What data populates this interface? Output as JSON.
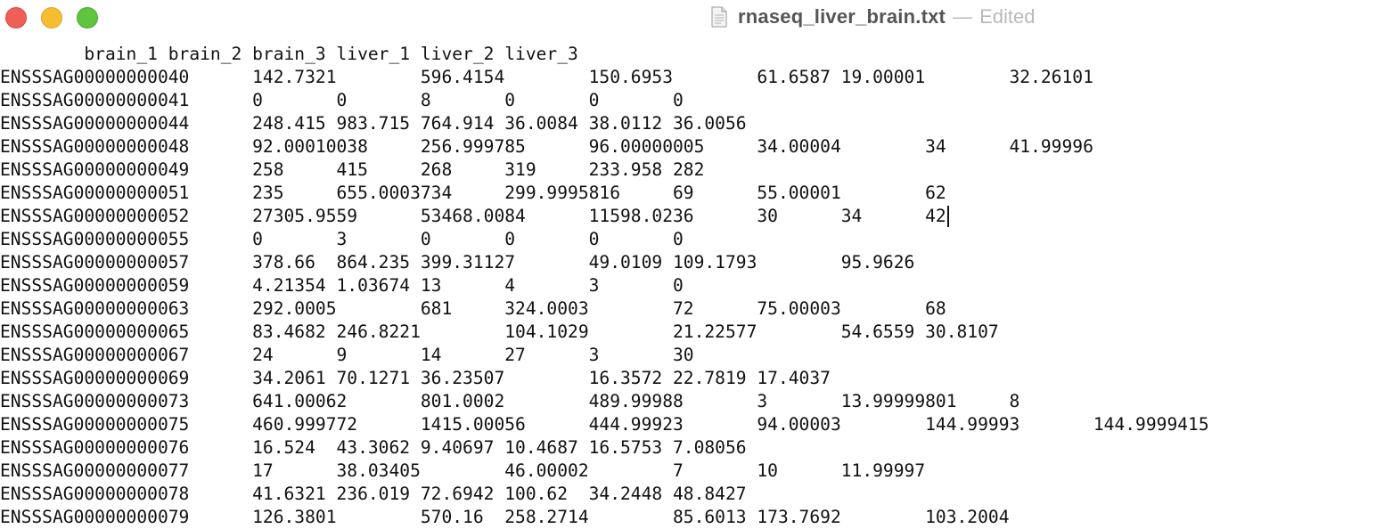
{
  "window": {
    "title": "rnaseq_liver_brain.txt",
    "separator": "—",
    "state": "Edited",
    "controls": [
      "close",
      "minimize",
      "zoom"
    ],
    "icon": "text-document-icon"
  },
  "document": {
    "header": [
      "brain_1",
      "brain_2",
      "brain_3",
      "liver_1",
      "liver_2",
      "liver_3"
    ],
    "rows": [
      [
        "ENSSSAG00000000040",
        "142.7321",
        "596.4154",
        "150.6953",
        "61.6587",
        "19.00001",
        "32.26101"
      ],
      [
        "ENSSSAG00000000041",
        "0",
        "0",
        "8",
        "0",
        "0",
        "0"
      ],
      [
        "ENSSSAG00000000044",
        "248.415",
        "983.715",
        "764.914",
        "36.0084",
        "38.0112",
        "36.0056"
      ],
      [
        "ENSSSAG00000000048",
        "92.00010038",
        "256.999785",
        "96.00000005",
        "34.00004",
        "34",
        "41.99996"
      ],
      [
        "ENSSSAG00000000049",
        "258",
        "415",
        "268",
        "319",
        "233.958",
        "282"
      ],
      [
        "ENSSSAG00000000051",
        "235",
        "655.0003734",
        "299.9995816",
        "69",
        "55.00001",
        "62"
      ],
      [
        "ENSSSAG00000000052",
        "27305.9559",
        "53468.0084",
        "11598.0236",
        "30",
        "34",
        "42"
      ],
      [
        "ENSSSAG00000000055",
        "0",
        "3",
        "0",
        "0",
        "0",
        "0"
      ],
      [
        "ENSSSAG00000000057",
        "378.66",
        "864.235",
        "399.31127",
        "49.0109",
        "109.1793",
        "95.9626"
      ],
      [
        "ENSSSAG00000000059",
        "4.21354",
        "1.03674",
        "13",
        "4",
        "3",
        "0"
      ],
      [
        "ENSSSAG00000000063",
        "292.0005",
        "681",
        "324.0003",
        "72",
        "75.00003",
        "68"
      ],
      [
        "ENSSSAG00000000065",
        "83.4682",
        "246.8221",
        "104.1029",
        "21.22577",
        "54.6559",
        "30.8107"
      ],
      [
        "ENSSSAG00000000067",
        "24",
        "9",
        "14",
        "27",
        "3",
        "30"
      ],
      [
        "ENSSSAG00000000069",
        "34.2061",
        "70.1271",
        "36.23507",
        "16.3572",
        "22.7819",
        "17.4037"
      ],
      [
        "ENSSSAG00000000073",
        "641.00062",
        "801.0002",
        "489.99988",
        "3",
        "13.99999801",
        "8"
      ],
      [
        "ENSSSAG00000000075",
        "460.999772",
        "1415.00056",
        "444.99923",
        "94.00003",
        "144.99993",
        "144.9999415"
      ],
      [
        "ENSSSAG00000000076",
        "16.524",
        "43.3062",
        "9.40697",
        "10.4687",
        "16.5753",
        "7.08056"
      ],
      [
        "ENSSSAG00000000077",
        "17",
        "38.03405",
        "46.00002",
        "7",
        "10",
        "11.99997"
      ],
      [
        "ENSSSAG00000000078",
        "41.6321",
        "236.019",
        "72.6942",
        "100.62",
        "34.2448",
        "48.8427"
      ],
      [
        "ENSSSAG00000000079",
        "126.3801",
        "570.16",
        "258.2714",
        "85.6013",
        "173.7692",
        "103.2004"
      ]
    ]
  }
}
